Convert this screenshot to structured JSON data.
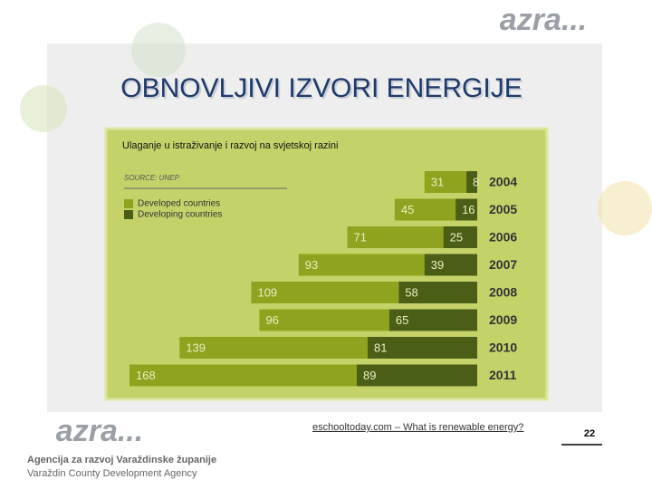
{
  "slide": {
    "title": "OBNOVLJIVI IZVORI ENERGIJE",
    "logo": "azra...",
    "agency_name": "Agencija za razvoj Varaždinske županije",
    "agency_english": "Varaždin County Development Agency",
    "link": "eschooltoday.com – What is renewable energy?",
    "page_number": "22"
  },
  "chart_data": {
    "type": "stacked-hbar",
    "title": "Ulaganje u istraživanje i razvoj na svjetskoj razini",
    "source": "SOURCE: UNEP",
    "categories": [
      "2004",
      "2005",
      "2006",
      "2007",
      "2008",
      "2009",
      "2010",
      "2011"
    ],
    "series": [
      {
        "name": "Developed countries",
        "color": "#8fa31e",
        "values": [
          31,
          45,
          71,
          93,
          109,
          96,
          139,
          168
        ]
      },
      {
        "name": "Developing countries",
        "color": "#4b5e16",
        "values": [
          8,
          16,
          25,
          39,
          58,
          65,
          81,
          89
        ]
      }
    ]
  }
}
